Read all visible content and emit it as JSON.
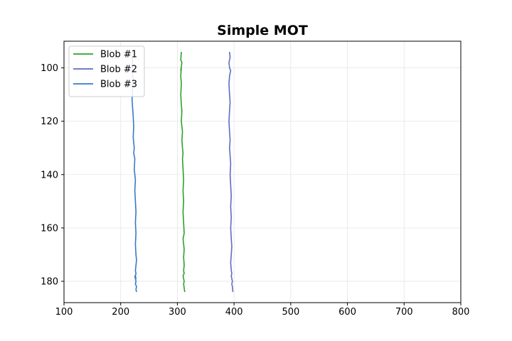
{
  "chart_data": {
    "type": "line",
    "title": "Simple MOT",
    "xlabel": "",
    "ylabel": "",
    "xlim": [
      100,
      800
    ],
    "ylim": [
      188,
      90
    ],
    "y_inverted": true,
    "xticks": [
      100,
      200,
      300,
      400,
      500,
      600,
      700,
      800
    ],
    "yticks": [
      100,
      120,
      140,
      160,
      180
    ],
    "grid": true,
    "legend_position": "top-left",
    "series": [
      {
        "name": "Blob #1",
        "color": "#2ca02c",
        "x": [
          307,
          306,
          308,
          306,
          307,
          306,
          307,
          306,
          307,
          308,
          307,
          309,
          308,
          309,
          310,
          309,
          310,
          311,
          310,
          311,
          310,
          311,
          312,
          310,
          311,
          312,
          311,
          312,
          311,
          312,
          310,
          311,
          312,
          311,
          313
        ],
        "y": [
          94,
          97,
          98,
          101,
          100,
          103,
          106,
          110,
          114,
          116,
          120,
          124,
          127,
          130,
          132,
          134,
          138,
          142,
          146,
          150,
          154,
          158,
          162,
          164,
          166,
          168,
          171,
          174,
          176,
          177,
          178,
          179,
          180,
          181,
          184
        ]
      },
      {
        "name": "Blob #2",
        "color": "#5d6cc4",
        "x": [
          392,
          393,
          391,
          392,
          394,
          392,
          391,
          392,
          393,
          392,
          391,
          392,
          393,
          392,
          393,
          394,
          393,
          394,
          395,
          394,
          395,
          394,
          395,
          396,
          395,
          394,
          395,
          396,
          395,
          396,
          397,
          396,
          397,
          398
        ],
        "y": [
          94,
          96,
          98,
          100,
          101,
          103,
          106,
          110,
          113,
          116,
          120,
          124,
          127,
          130,
          133,
          136,
          140,
          144,
          148,
          152,
          156,
          160,
          164,
          167,
          170,
          173,
          176,
          177,
          178,
          179,
          180,
          181,
          182,
          184
        ]
      },
      {
        "name": "Blob #3",
        "color": "#3a78c9",
        "x": [
          220,
          221,
          220,
          222,
          221,
          220,
          221,
          222,
          223,
          222,
          224,
          223,
          225,
          224,
          226,
          225,
          226,
          227,
          226,
          227,
          226,
          227,
          228,
          227,
          226,
          227,
          226,
          227,
          225,
          227,
          226,
          228,
          227,
          228
        ],
        "y": [
          96,
          98,
          101,
          104,
          108,
          112,
          115,
          118,
          122,
          126,
          130,
          132,
          134,
          138,
          142,
          146,
          150,
          154,
          158,
          162,
          166,
          170,
          172,
          174,
          176,
          177,
          178,
          179,
          178,
          180,
          181,
          182,
          183,
          184
        ]
      }
    ]
  }
}
